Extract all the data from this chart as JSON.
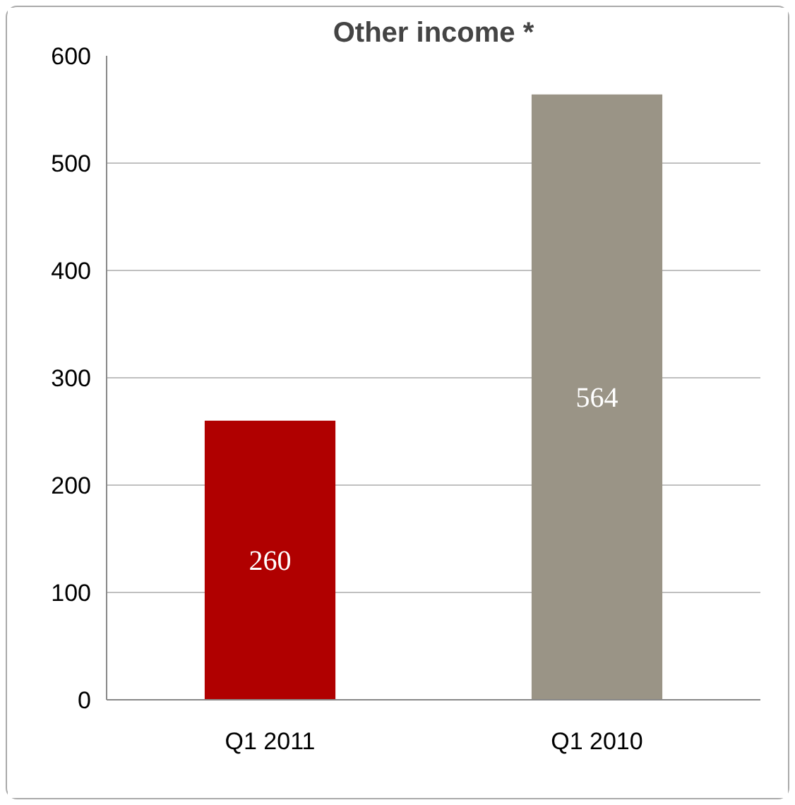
{
  "chart_data": {
    "type": "bar",
    "title": "Other income *",
    "categories": [
      "Q1 2011",
      "Q1 2010"
    ],
    "values": [
      260,
      564
    ],
    "colors": [
      "#b00000",
      "#9a9486"
    ],
    "ylim": [
      0,
      600
    ],
    "yticks": [
      0,
      100,
      200,
      300,
      400,
      500,
      600
    ],
    "grid": "y",
    "data_labels": true
  }
}
